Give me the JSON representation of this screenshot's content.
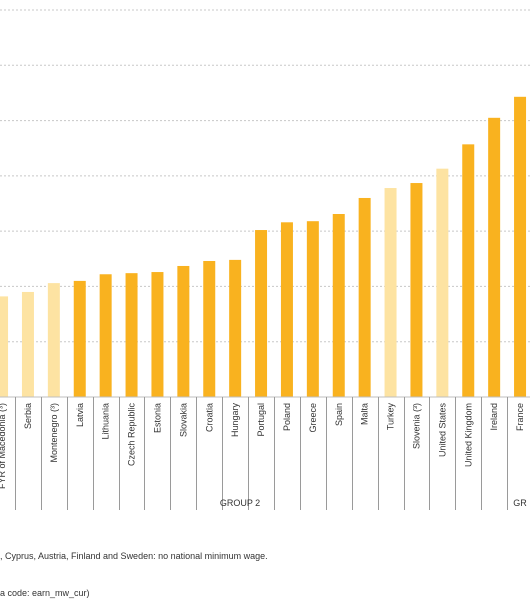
{
  "chart_data": {
    "type": "bar",
    "categories": [
      "FYR of Macedonia (³)",
      "Serbia",
      "Montenegro (³)",
      "Latvia",
      "Lithuania",
      "Czech Republic",
      "Estonia",
      "Slovakia",
      "Croatia",
      "Hungary",
      "Portugal",
      "Poland",
      "Greece",
      "Spain",
      "Malta",
      "Turkey",
      "Slovenia (³)",
      "United States",
      "United Kingdom",
      "Ireland",
      "France"
    ],
    "values": [
      1.82,
      1.9,
      2.06,
      2.1,
      2.22,
      2.24,
      2.26,
      2.37,
      2.46,
      2.48,
      3.02,
      3.16,
      3.18,
      3.31,
      3.6,
      3.78,
      3.87,
      4.13,
      4.57,
      5.05,
      5.43
    ],
    "highlight": [
      true,
      true,
      true,
      false,
      false,
      false,
      false,
      false,
      false,
      false,
      false,
      false,
      false,
      false,
      false,
      true,
      false,
      true,
      false,
      false,
      false
    ],
    "groups": [
      {
        "label": "GROUP 2",
        "from": 3,
        "to": 17
      },
      {
        "label": "GR",
        "from": 18,
        "to": 20
      }
    ],
    "ylim": [
      0,
      7
    ],
    "grid": true,
    "colors": {
      "main": "#f9b21f",
      "light": "#fde3a2"
    }
  },
  "notes": {
    "line1": ", Cyprus, Austria, Finland and Sweden: no national minimum wage.",
    "line2": "a code: earn_mw_cur)"
  }
}
